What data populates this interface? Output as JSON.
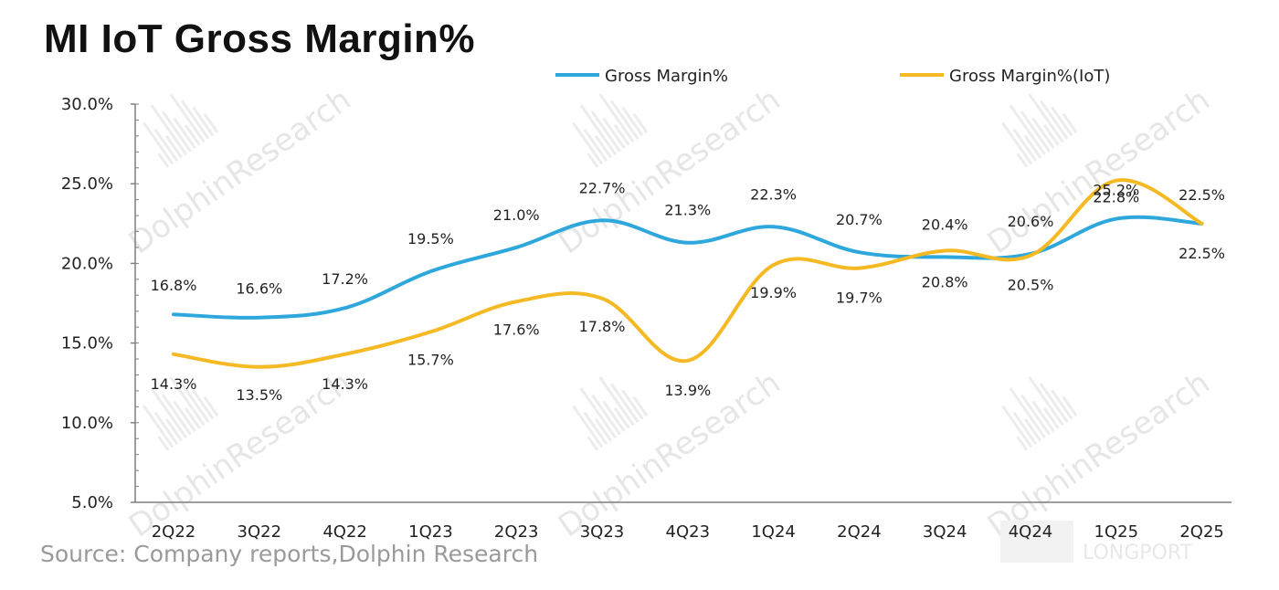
{
  "title": "MI IoT Gross Margin%",
  "source": "Source: Company reports,Dolphin Research",
  "watermark": {
    "brand": "DolphinResearch",
    "corner": "LONGPORT"
  },
  "colors": {
    "gross_margin": "#2EA8DC",
    "gross_margin_iot": "#F5B924",
    "axis": "#7f7f7f"
  },
  "chart_data": {
    "type": "line",
    "title": "MI IoT Gross Margin%",
    "categories": [
      "2Q22",
      "3Q22",
      "4Q22",
      "1Q23",
      "2Q23",
      "3Q23",
      "4Q23",
      "1Q24",
      "2Q24",
      "3Q24",
      "4Q24",
      "1Q25",
      "2Q25"
    ],
    "series": [
      {
        "name": "Gross Margin%",
        "values": [
          16.8,
          16.6,
          17.2,
          19.5,
          21.0,
          22.7,
          21.3,
          22.3,
          20.7,
          20.4,
          20.6,
          22.8,
          22.5
        ],
        "color": "#2EA8DC"
      },
      {
        "name": "Gross Margin%(IoT)",
        "values": [
          14.3,
          13.5,
          14.3,
          15.7,
          17.6,
          17.8,
          13.9,
          19.9,
          19.7,
          20.8,
          20.5,
          25.2,
          22.5
        ],
        "color": "#F5B924"
      }
    ],
    "data_labels": {
      "Gross Margin%": [
        "16.8%",
        "16.6%",
        "17.2%",
        "19.5%",
        "21.0%",
        "22.7%",
        "21.3%",
        "22.3%",
        "20.7%",
        "20.4%",
        "20.6%",
        "22.8%",
        "22.5%"
      ],
      "Gross Margin%(IoT)": [
        "14.3%",
        "13.5%",
        "14.3%",
        "15.7%",
        "17.6%",
        "17.8%",
        "13.9%",
        "19.9%",
        "19.7%",
        "20.8%",
        "20.5%",
        "25.2%",
        "22.5%"
      ]
    },
    "y_ticks": [
      "5.0%",
      "10.0%",
      "15.0%",
      "20.0%",
      "25.0%",
      "30.0%"
    ],
    "ylim": [
      5,
      30
    ],
    "grid": false,
    "legend_position": "top"
  }
}
